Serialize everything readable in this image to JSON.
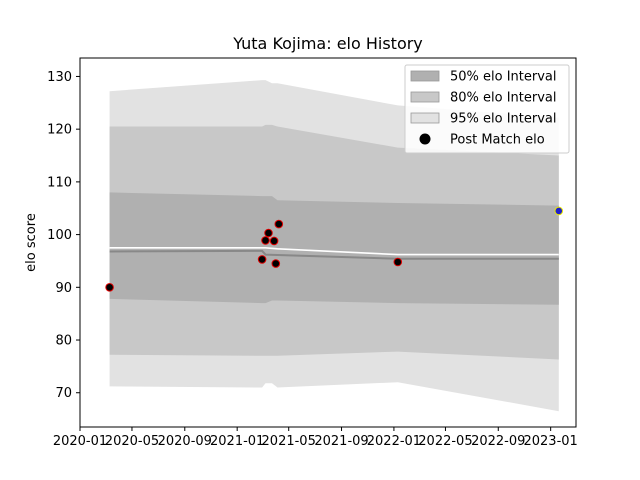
{
  "chart_data": {
    "type": "line",
    "title": "Yuta Kojima: elo History",
    "xlabel": "",
    "ylabel": "elo score",
    "ylim": [
      63.5,
      133.5
    ],
    "xlim": [
      "2020-01-01",
      "2023-03-01"
    ],
    "x_ticks": [
      "2020-01",
      "2020-05",
      "2020-09",
      "2021-01",
      "2021-05",
      "2021-09",
      "2022-01",
      "2022-05",
      "2022-09",
      "2023-01"
    ],
    "y_ticks": [
      70,
      80,
      90,
      100,
      110,
      120,
      130
    ],
    "grid": false,
    "legend_position": "top-right",
    "legend": [
      {
        "label": "50% elo Interval",
        "kind": "band50"
      },
      {
        "label": "80% elo Interval",
        "kind": "band80"
      },
      {
        "label": "95% elo Interval",
        "kind": "band95"
      },
      {
        "label": "Post Match elo",
        "kind": "marker"
      }
    ],
    "colors": {
      "band50": "#b0b0b0",
      "band80": "#c8c8c8",
      "band95": "#e2e2e2",
      "mean_line": "#ffffff",
      "median_line": "#888888",
      "marker_face": "#000000",
      "marker_edge": "#e00000",
      "current_marker_face": "#1f1fcc",
      "current_marker_edge": "#e8e800"
    },
    "bands": {
      "dates": [
        "2020-03-10",
        "2021-02-28",
        "2021-03-08",
        "2021-03-23",
        "2021-04-05",
        "2022-01-10",
        "2023-01-20"
      ],
      "p95_low": [
        71.2,
        71.0,
        71.8,
        71.8,
        71.0,
        72.0,
        66.5
      ],
      "p95_high": [
        127.2,
        129.3,
        129.3,
        128.7,
        128.7,
        124.5,
        122.2
      ],
      "p80_low": [
        77.2,
        77.0,
        77.0,
        77.0,
        77.0,
        77.8,
        76.3
      ],
      "p80_high": [
        120.5,
        120.5,
        120.8,
        120.8,
        120.5,
        116.5,
        115.0
      ],
      "p50_low": [
        87.8,
        87.0,
        87.0,
        87.5,
        87.5,
        87.0,
        86.7
      ],
      "p50_high": [
        108.0,
        107.3,
        107.3,
        107.3,
        106.5,
        106.0,
        105.5
      ]
    },
    "mean_line": {
      "dates": [
        "2020-03-10",
        "2021-03-08",
        "2021-04-05",
        "2022-01-10",
        "2023-01-20"
      ],
      "values": [
        97.5,
        97.5,
        97.3,
        96.2,
        96.2
      ]
    },
    "median_line": {
      "dates": [
        "2020-03-10",
        "2021-02-28",
        "2021-03-08",
        "2022-01-10",
        "2023-01-20"
      ],
      "values": [
        96.8,
        96.9,
        96.2,
        95.4,
        95.4
      ]
    },
    "post_match_elo": [
      {
        "date": "2020-03-10",
        "elo": 90.0
      },
      {
        "date": "2021-02-28",
        "elo": 95.3
      },
      {
        "date": "2021-03-08",
        "elo": 98.9
      },
      {
        "date": "2021-03-15",
        "elo": 100.3
      },
      {
        "date": "2021-03-28",
        "elo": 98.8
      },
      {
        "date": "2021-04-01",
        "elo": 94.5
      },
      {
        "date": "2021-04-08",
        "elo": 102.0
      },
      {
        "date": "2022-01-10",
        "elo": 94.8
      }
    ],
    "current_elo": {
      "date": "2023-01-20",
      "elo": 104.5
    }
  }
}
